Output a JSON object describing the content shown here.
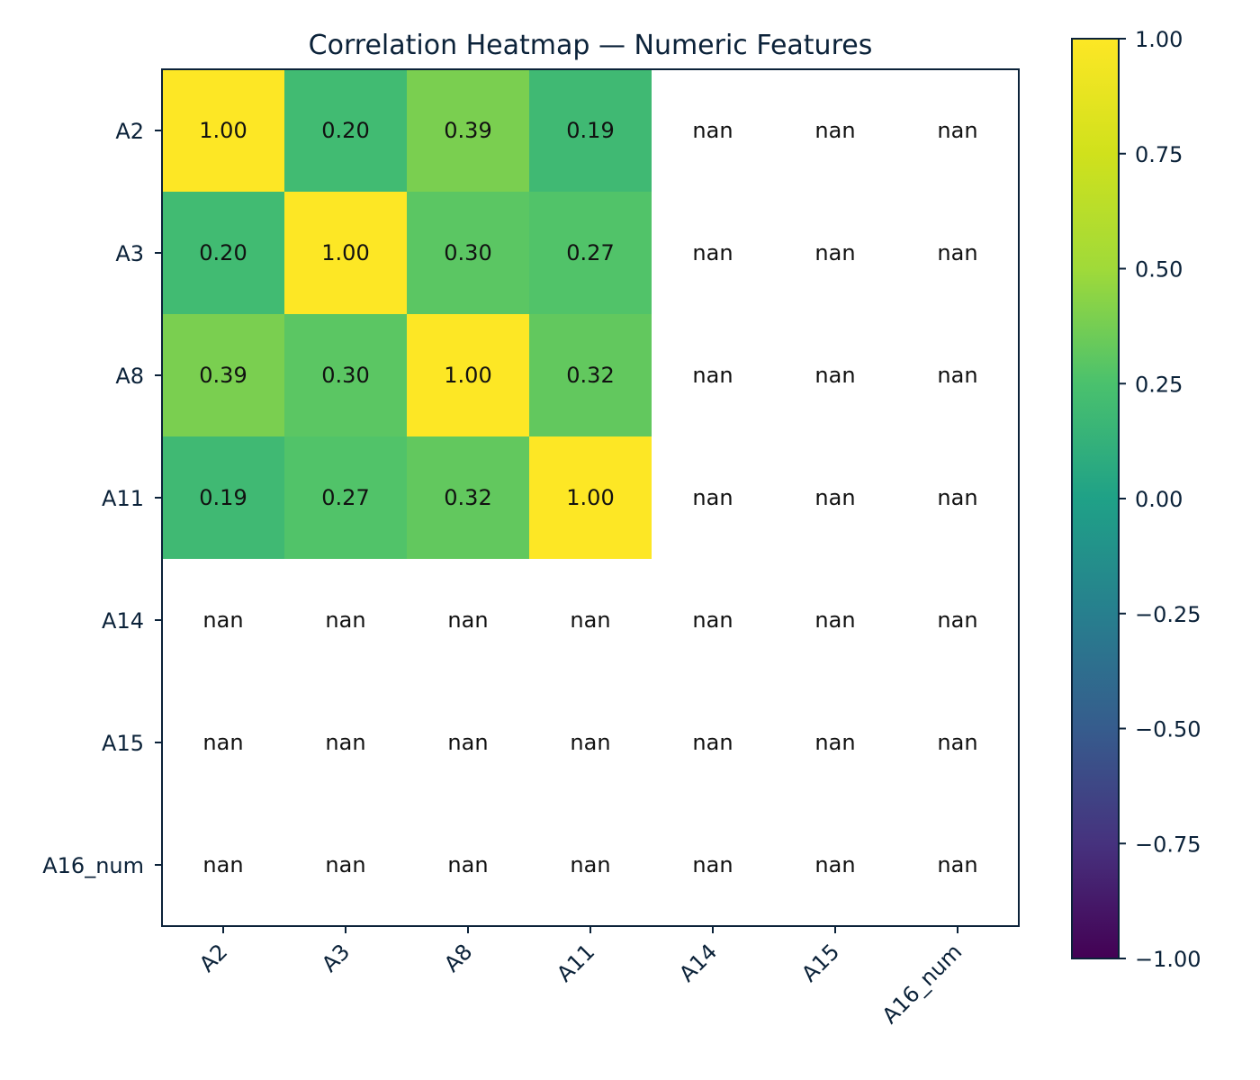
{
  "chart_data": {
    "type": "heatmap",
    "title": "Correlation Heatmap — Numeric Features",
    "rows": [
      "A2",
      "A3",
      "A8",
      "A11",
      "A14",
      "A15",
      "A16_num"
    ],
    "columns": [
      "A2",
      "A3",
      "A8",
      "A11",
      "A14",
      "A15",
      "A16_num"
    ],
    "values": [
      [
        1.0,
        0.2,
        0.39,
        0.19,
        null,
        null,
        null
      ],
      [
        0.2,
        1.0,
        0.3,
        0.27,
        null,
        null,
        null
      ],
      [
        0.39,
        0.3,
        1.0,
        0.32,
        null,
        null,
        null
      ],
      [
        0.19,
        0.27,
        0.32,
        1.0,
        null,
        null,
        null
      ],
      [
        null,
        null,
        null,
        null,
        null,
        null,
        null
      ],
      [
        null,
        null,
        null,
        null,
        null,
        null,
        null
      ],
      [
        null,
        null,
        null,
        null,
        null,
        null,
        null
      ]
    ],
    "missing_label": "nan",
    "colormap": "viridis",
    "vmin": -1.0,
    "vmax": 1.0,
    "colorbar_ticks": [
      "1.00",
      "0.75",
      "0.50",
      "0.25",
      "0.00",
      "−0.25",
      "−0.50",
      "−0.75",
      "−1.00"
    ],
    "colorbar_tick_values": [
      1.0,
      0.75,
      0.5,
      0.25,
      0.0,
      -0.25,
      -0.5,
      -0.75,
      -1.0
    ],
    "colors": {
      "text": "#0b2239",
      "missing_cell": "#ffffff"
    }
  }
}
